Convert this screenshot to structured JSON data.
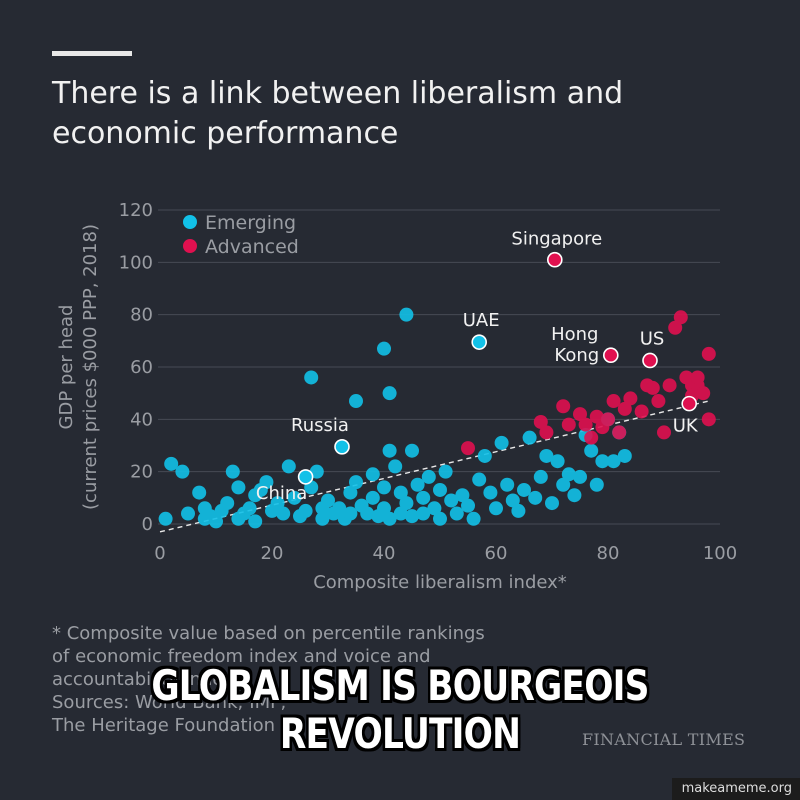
{
  "header": {
    "title": "There is a link between liberalism and economic performance"
  },
  "footer": {
    "note_lines": [
      "* Composite value based on percentile rankings",
      "of economic freedom index and voice and",
      "accountability index",
      "Sources: World Bank; IMF;",
      "The Heritage Foundation"
    ],
    "brand": "FINANCIAL TIMES"
  },
  "meme": {
    "caption_line1": "GLOBALISM IS BOURGEOIS",
    "caption_line2": "REVOLUTION",
    "watermark": "makeameme.org"
  },
  "colors": {
    "background": "#262a33",
    "emerging": "#12c1e8",
    "advanced": "#e0104f",
    "grid": "#474b55",
    "axis_text": "#9a9da3",
    "trend": "#e8e8e8"
  },
  "chart_data": {
    "type": "scatter",
    "xlabel": "Composite liberalism index*",
    "ylabel_line1": "GDP per head",
    "ylabel_line2": "(current prices $000 PPP, 2018)",
    "xlim": [
      0,
      100
    ],
    "ylim": [
      0,
      120
    ],
    "x_ticks": [
      "0",
      "20",
      "40",
      "60",
      "80",
      "100"
    ],
    "y_ticks": [
      "0",
      "20",
      "40",
      "60",
      "80",
      "100",
      "120"
    ],
    "legend_position": "top-left",
    "grid": "horizontal",
    "trendline": {
      "x": [
        0,
        98
      ],
      "y": [
        -3,
        47
      ],
      "style": "dashed"
    },
    "series": [
      {
        "name": "Emerging",
        "color": "#12c1e8",
        "points": [
          [
            1,
            2
          ],
          [
            2,
            23
          ],
          [
            4,
            20
          ],
          [
            5,
            4
          ],
          [
            7,
            12
          ],
          [
            8,
            6
          ],
          [
            8,
            2
          ],
          [
            9,
            3
          ],
          [
            10,
            1
          ],
          [
            11,
            5
          ],
          [
            12,
            8
          ],
          [
            13,
            20
          ],
          [
            14,
            14
          ],
          [
            14,
            2
          ],
          [
            15,
            4
          ],
          [
            16,
            6
          ],
          [
            17,
            11
          ],
          [
            17,
            1
          ],
          [
            18,
            13
          ],
          [
            19,
            16
          ],
          [
            20,
            5
          ],
          [
            21,
            8
          ],
          [
            22,
            4
          ],
          [
            23,
            22
          ],
          [
            24,
            10
          ],
          [
            25,
            3
          ],
          [
            26,
            5
          ],
          [
            27,
            14
          ],
          [
            28,
            20
          ],
          [
            29,
            6
          ],
          [
            29,
            2
          ],
          [
            30,
            9
          ],
          [
            31,
            4
          ],
          [
            32,
            6
          ],
          [
            33,
            2
          ],
          [
            34,
            12
          ],
          [
            34,
            4
          ],
          [
            35,
            16
          ],
          [
            36,
            7
          ],
          [
            37,
            4
          ],
          [
            38,
            19
          ],
          [
            38,
            10
          ],
          [
            39,
            3
          ],
          [
            40,
            14
          ],
          [
            40,
            6
          ],
          [
            41,
            2
          ],
          [
            42,
            22
          ],
          [
            43,
            12
          ],
          [
            43,
            4
          ],
          [
            44,
            8
          ],
          [
            45,
            3
          ],
          [
            46,
            15
          ],
          [
            47,
            10
          ],
          [
            47,
            4
          ],
          [
            48,
            18
          ],
          [
            49,
            6
          ],
          [
            50,
            13
          ],
          [
            50,
            2
          ],
          [
            51,
            20
          ],
          [
            52,
            9
          ],
          [
            53,
            4
          ],
          [
            54,
            11
          ],
          [
            55,
            7
          ],
          [
            56,
            2
          ],
          [
            57,
            17
          ],
          [
            58,
            26
          ],
          [
            59,
            12
          ],
          [
            60,
            6
          ],
          [
            61,
            31
          ],
          [
            62,
            15
          ],
          [
            63,
            9
          ],
          [
            64,
            5
          ],
          [
            65,
            13
          ],
          [
            66,
            33
          ],
          [
            67,
            10
          ],
          [
            68,
            18
          ],
          [
            69,
            26
          ],
          [
            70,
            8
          ],
          [
            71,
            24
          ],
          [
            72,
            15
          ],
          [
            73,
            19
          ],
          [
            74,
            11
          ],
          [
            75,
            18
          ],
          [
            76,
            34
          ],
          [
            77,
            28
          ],
          [
            78,
            15
          ],
          [
            79,
            24
          ],
          [
            80,
            40
          ],
          [
            81,
            24
          ],
          [
            82,
            35
          ],
          [
            83,
            26
          ],
          [
            27,
            56
          ],
          [
            35,
            47
          ],
          [
            40,
            67
          ],
          [
            41,
            50
          ],
          [
            44,
            80
          ],
          [
            41,
            28
          ],
          [
            45,
            28
          ]
        ]
      },
      {
        "name": "Advanced",
        "color": "#e0104f",
        "points": [
          [
            55,
            29
          ],
          [
            68,
            39
          ],
          [
            69,
            35
          ],
          [
            72,
            45
          ],
          [
            73,
            38
          ],
          [
            75,
            42
          ],
          [
            76,
            38
          ],
          [
            77,
            33
          ],
          [
            78,
            41
          ],
          [
            79,
            37
          ],
          [
            80,
            40
          ],
          [
            81,
            47
          ],
          [
            82,
            35
          ],
          [
            83,
            44
          ],
          [
            84,
            48
          ],
          [
            86,
            43
          ],
          [
            87,
            53
          ],
          [
            88,
            52
          ],
          [
            89,
            47
          ],
          [
            90,
            35
          ],
          [
            91,
            53
          ],
          [
            92,
            75
          ],
          [
            93,
            79
          ],
          [
            94,
            56
          ],
          [
            95,
            53
          ],
          [
            95,
            49
          ],
          [
            96,
            53
          ],
          [
            96,
            56
          ],
          [
            97,
            50
          ],
          [
            98,
            65
          ],
          [
            98,
            40
          ]
        ]
      }
    ],
    "highlighted": [
      {
        "label": "Singapore",
        "x": 70.5,
        "y": 101,
        "group": "Advanced"
      },
      {
        "label": "UAE",
        "x": 57,
        "y": 69.5,
        "group": "Emerging"
      },
      {
        "label": "Hong Kong",
        "x": 80.5,
        "y": 64.5,
        "group": "Advanced"
      },
      {
        "label": "US",
        "x": 87.5,
        "y": 62.5,
        "group": "Advanced"
      },
      {
        "label": "Russia",
        "x": 32.5,
        "y": 29.5,
        "group": "Emerging"
      },
      {
        "label": "China",
        "x": 26,
        "y": 18,
        "group": "Emerging"
      },
      {
        "label": "UK",
        "x": 94.5,
        "y": 46,
        "group": "Advanced"
      }
    ]
  }
}
